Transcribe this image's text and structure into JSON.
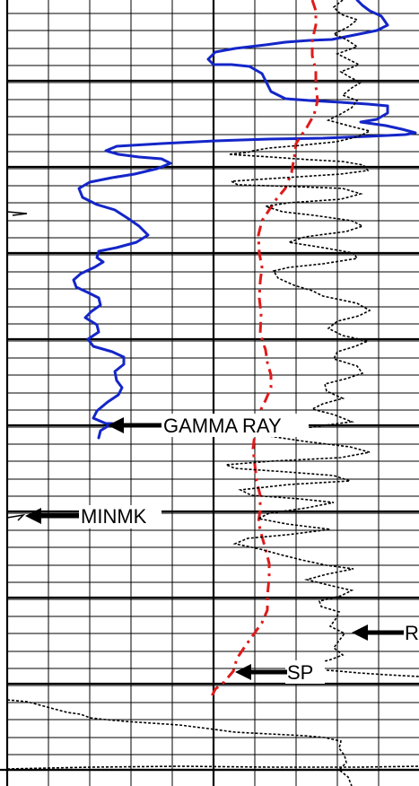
{
  "labels": {
    "gamma_ray": "GAMMA RAY",
    "minmk": "MINMK",
    "sp": "SP",
    "r": "R"
  },
  "colors": {
    "gamma_ray": "#1426c8",
    "sp": "#e01a1a",
    "resistivity": "#000000",
    "grid": "#000000"
  },
  "curve_styles": {
    "gamma_ray": "solid",
    "sp": "dash-dot",
    "resistivity": "dotted"
  }
}
